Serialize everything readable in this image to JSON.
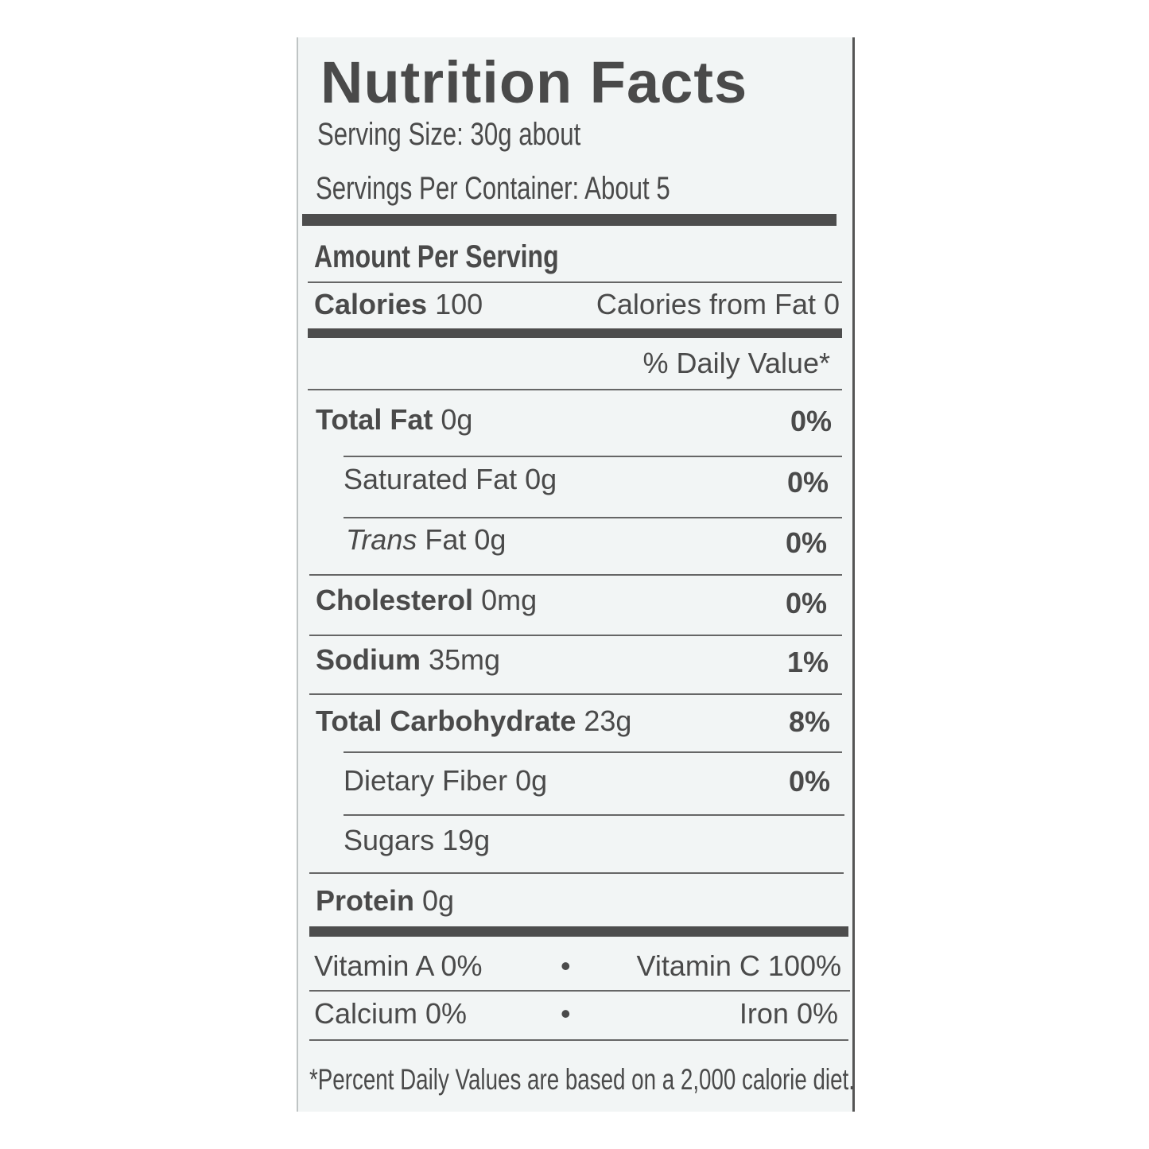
{
  "label": {
    "title": "Nutrition Facts",
    "serving_size": "Serving Size: 30g about",
    "servings_per_container": "Servings Per Container: About 5",
    "amount_per_serving": "Amount Per Serving",
    "calories_label": "Calories",
    "calories_value": "100",
    "calories_from_fat": "Calories from Fat 0",
    "daily_value_header": "% Daily Value*",
    "nutrients": [
      {
        "name": "Total Fat",
        "amount": "0g",
        "dv": "0%"
      },
      {
        "name": "Saturated Fat",
        "amount": "0g",
        "dv": "0%"
      },
      {
        "name": "Trans",
        "name_rest": "Fat",
        "amount": "0g",
        "dv": "0%"
      },
      {
        "name": "Cholesterol",
        "amount": "0mg",
        "dv": "0%"
      },
      {
        "name": "Sodium",
        "amount": "35mg",
        "dv": "1%"
      },
      {
        "name": "Total Carbohydrate",
        "amount": "23g",
        "dv": "8%"
      },
      {
        "name": "Dietary Fiber",
        "amount": "0g",
        "dv": "0%"
      },
      {
        "name": "Sugars",
        "amount": "19g"
      },
      {
        "name": "Protein",
        "amount": "0g"
      }
    ],
    "vitamin_a": "Vitamin  A 0%",
    "vitamin_c": "Vitamin C 100%",
    "calcium": "Calcium 0%",
    "iron": "Iron 0%",
    "bullet": "•",
    "footnote": "*Percent Daily Values are based on a 2,000 calorie diet."
  }
}
